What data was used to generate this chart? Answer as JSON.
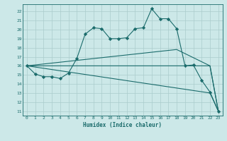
{
  "title": "",
  "xlabel": "Humidex (Indice chaleur)",
  "xlim": [
    -0.5,
    23.5
  ],
  "ylim": [
    10.5,
    22.8
  ],
  "yticks": [
    11,
    12,
    13,
    14,
    15,
    16,
    17,
    18,
    19,
    20,
    21,
    22
  ],
  "xticks": [
    0,
    1,
    2,
    3,
    4,
    5,
    6,
    7,
    8,
    9,
    10,
    11,
    12,
    13,
    14,
    15,
    16,
    17,
    18,
    19,
    20,
    21,
    22,
    23
  ],
  "bg_color": "#cce8e8",
  "grid_color": "#aacccc",
  "line_color": "#1a6b6b",
  "line1_x": [
    0,
    1,
    2,
    3,
    4,
    5,
    6,
    7,
    8,
    9,
    10,
    11,
    12,
    13,
    14,
    15,
    16,
    17,
    18,
    19,
    20,
    21,
    22,
    23
  ],
  "line1_y": [
    16.0,
    15.1,
    14.8,
    14.8,
    14.6,
    15.2,
    16.8,
    19.5,
    20.2,
    20.1,
    19.0,
    19.0,
    19.1,
    20.1,
    20.2,
    22.3,
    21.2,
    21.2,
    20.1,
    16.0,
    16.1,
    14.4,
    13.1,
    11.0
  ],
  "line2_x": [
    0,
    22,
    23
  ],
  "line2_y": [
    16.0,
    16.0,
    11.0
  ],
  "line3_x": [
    0,
    18,
    22,
    23
  ],
  "line3_y": [
    16.0,
    17.8,
    16.0,
    11.0
  ],
  "line4_x": [
    0,
    22,
    23
  ],
  "line4_y": [
    16.0,
    13.0,
    11.0
  ],
  "marker": "D",
  "markersize": 2.2,
  "linewidth": 0.8
}
